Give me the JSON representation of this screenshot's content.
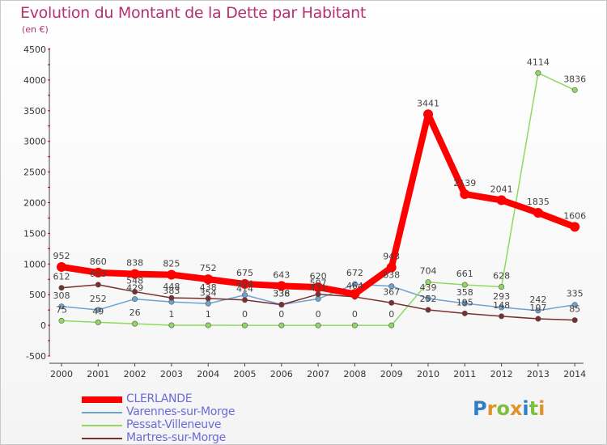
{
  "header": {
    "title": "Evolution du Montant de la Dette par Habitant",
    "unit": "(en €)"
  },
  "colors": {
    "title": "#b5316e",
    "axis": "#444444",
    "grid_tick": "#cc0000",
    "legend_text": "#6b6bd8"
  },
  "logo": {
    "text": "Proxiti",
    "letters": [
      "P",
      "r",
      "o",
      "x",
      "i",
      "t",
      "i"
    ],
    "colors": [
      "#2e7fc8",
      "#e0932b",
      "#7fbf3f",
      "#e0932b",
      "#2e7fc8",
      "#7fbf3f",
      "#e0932b"
    ]
  },
  "chart_data": {
    "type": "line",
    "title": "Evolution du Montant de la Dette par Habitant",
    "subtitle": "(en €)",
    "x": [
      "2000",
      "2001",
      "2002",
      "2003",
      "2004",
      "2005",
      "2006",
      "2007",
      "2008",
      "2009",
      "2010",
      "2011",
      "2012",
      "2013",
      "2014"
    ],
    "ylim": [
      -500,
      4500
    ],
    "yticks": [
      "-500",
      "0",
      "500",
      "1000",
      "1500",
      "2000",
      "2500",
      "3000",
      "3500",
      "4000",
      "4500"
    ],
    "ytick_values": [
      -500,
      0,
      500,
      1000,
      1500,
      2000,
      2500,
      3000,
      3500,
      4000,
      4500
    ],
    "grid": false,
    "legend_position": "bottom-left",
    "series": [
      {
        "name": "CLERLANDE",
        "color": "#ff0000",
        "values": [
          952,
          860,
          838,
          825,
          752,
          675,
          643,
          620,
          512,
          943,
          3441,
          2139,
          2041,
          1835,
          1606
        ],
        "labels": [
          "952",
          "860",
          "838",
          "825",
          "752",
          "675",
          "643",
          "620",
          "",
          "943",
          "3441",
          "2139",
          "2041",
          "1835",
          "1606"
        ]
      },
      {
        "name": "Varennes-sur-Morge",
        "color": "#6fa3cf",
        "values": [
          308,
          252,
          429,
          383,
          354,
          494,
          338,
          431,
          672,
          638,
          439,
          358,
          293,
          242,
          335
        ],
        "labels": [
          "308",
          "252",
          "429",
          "383",
          "354",
          "494",
          "338",
          "431",
          "672",
          "638",
          "439",
          "358",
          "293",
          "242",
          "335"
        ]
      },
      {
        "name": "Pessat-Villeneuve",
        "color": "#8fd95f",
        "values": [
          75,
          49,
          26,
          1,
          1,
          0,
          0,
          0,
          0,
          0,
          704,
          661,
          628,
          4114,
          3836
        ],
        "labels": [
          "75",
          "49",
          "26",
          "1",
          "1",
          "0",
          "0",
          "0",
          "0",
          "0",
          "704",
          "661",
          "628",
          "4114",
          "3836"
        ]
      },
      {
        "name": "Martres-sur-Morge",
        "color": "#7a2f2f",
        "values": [
          612,
          663,
          548,
          448,
          438,
          414,
          336,
          507,
          464,
          367,
          252,
          195,
          148,
          107,
          85
        ],
        "labels": [
          "612",
          "663",
          "548",
          "448",
          "438",
          "414",
          "336",
          "507",
          "464",
          "367",
          "252",
          "195",
          "148",
          "107",
          "85"
        ]
      }
    ]
  }
}
